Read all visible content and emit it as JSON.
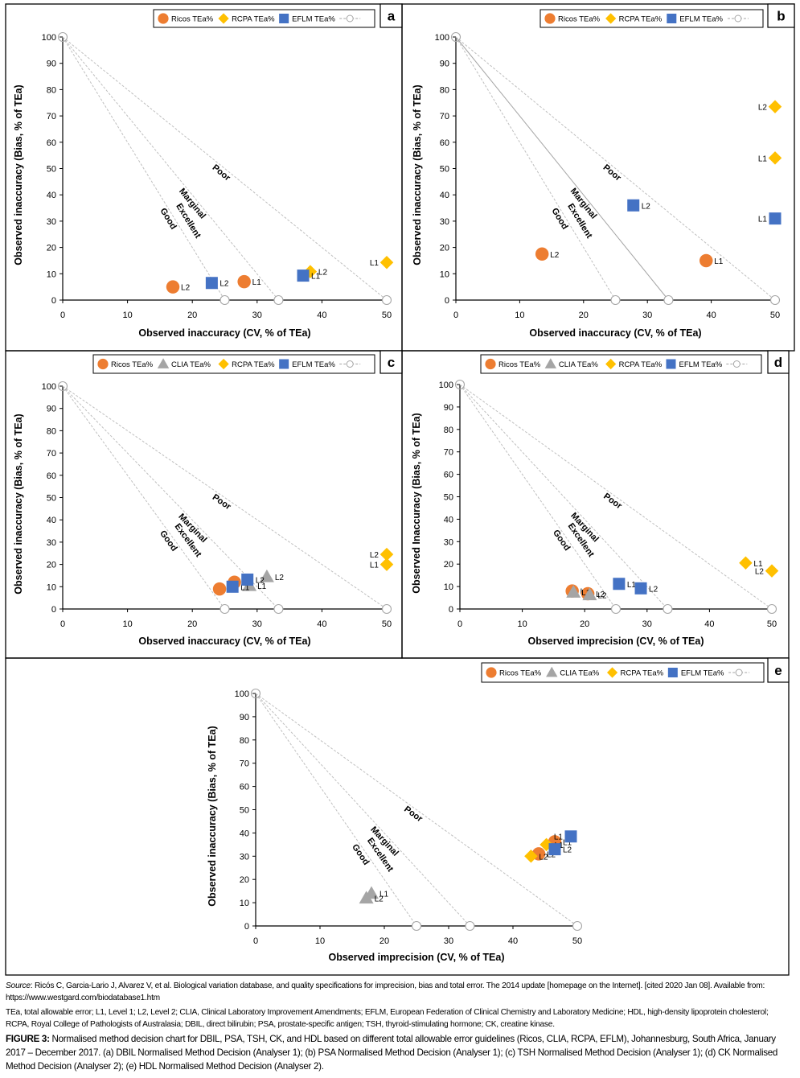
{
  "figure": {
    "panels": [
      {
        "id": "a",
        "label": "a",
        "legend": [
          {
            "name": "Ricos TEa%",
            "marker": "circle",
            "color": "#ED7D31"
          },
          {
            "name": "RCPA TEa%",
            "marker": "diamond",
            "color": "#FFC000"
          },
          {
            "name": "EFLM TEa%",
            "marker": "square",
            "color": "#4472C4"
          },
          {
            "name": "",
            "marker": "dashed-line-open-circle",
            "color": "#A6A6A6"
          }
        ],
        "xlabel": "Observed inaccuracy (CV, % of TEa)",
        "ylabel": "Observed inaccuracy (Bias, % of TEa)",
        "middle_line_solid": false
      },
      {
        "id": "b",
        "label": "b",
        "legend": [
          {
            "name": "Ricos TEa%",
            "marker": "circle",
            "color": "#ED7D31"
          },
          {
            "name": "RCPA TEa%",
            "marker": "diamond",
            "color": "#FFC000"
          },
          {
            "name": "EFLM TEa%",
            "marker": "square",
            "color": "#4472C4"
          },
          {
            "name": "",
            "marker": "dashed-line-open-circle",
            "color": "#A6A6A6"
          }
        ],
        "xlabel": "Observed inaccuracy (CV, % of TEa)",
        "ylabel": "Observed inaccuracy (Bias, % of TEa)",
        "middle_line_solid": true
      },
      {
        "id": "c",
        "label": "c",
        "legend": [
          {
            "name": "Ricos TEa%",
            "marker": "circle",
            "color": "#ED7D31"
          },
          {
            "name": "CLIA TEa%",
            "marker": "triangle",
            "color": "#A5A5A5"
          },
          {
            "name": "RCPA TEa%",
            "marker": "diamond",
            "color": "#FFC000"
          },
          {
            "name": "EFLM TEa%",
            "marker": "square",
            "color": "#4472C4"
          },
          {
            "name": "",
            "marker": "dashed-line-open-circle",
            "color": "#A6A6A6"
          }
        ],
        "xlabel": "Observed inaccuracy (CV, % of TEa)",
        "ylabel": "Observed inaccuracy (Bias, % of TEa)",
        "middle_line_solid": false
      },
      {
        "id": "d",
        "label": "d",
        "legend": [
          {
            "name": "Ricos TEa%",
            "marker": "circle",
            "color": "#ED7D31"
          },
          {
            "name": "CLIA TEa%",
            "marker": "triangle",
            "color": "#A5A5A5"
          },
          {
            "name": "RCPA TEa%",
            "marker": "diamond",
            "color": "#FFC000"
          },
          {
            "name": "EFLM TEa%",
            "marker": "square",
            "color": "#4472C4"
          },
          {
            "name": "",
            "marker": "dashed-line-open-circle",
            "color": "#A6A6A6"
          }
        ],
        "xlabel": "Observed imprecision (CV, % of TEa)",
        "ylabel": "Observed Inaccuracy (Bias, % of TEa)",
        "middle_line_solid": false
      },
      {
        "id": "e",
        "label": "e",
        "legend": [
          {
            "name": "Ricos TEa%",
            "marker": "circle",
            "color": "#ED7D31"
          },
          {
            "name": "CLIA TEa%",
            "marker": "triangle",
            "color": "#A5A5A5"
          },
          {
            "name": "RCPA TEa%",
            "marker": "diamond",
            "color": "#FFC000"
          },
          {
            "name": "EFLM TEa%",
            "marker": "square",
            "color": "#4472C4"
          },
          {
            "name": "",
            "marker": "dashed-line-open-circle",
            "color": "#A6A6A6"
          }
        ],
        "xlabel": "Observed imprecision (CV, % of TEa)",
        "ylabel": "Observed inaccuracy (Bias, % of TEa)",
        "middle_line_solid": false
      }
    ],
    "zone_labels": [
      "Excellent",
      "Good",
      "Marginal",
      "Poor"
    ]
  },
  "chart_data": [
    {
      "panel": "a",
      "type": "scatter",
      "title": "DBIL Normalised Method Decision (Analyser 1)",
      "xlabel": "Observed inaccuracy (CV, % of TEa)",
      "ylabel": "Observed inaccuracy (Bias, % of TEa)",
      "xlim": [
        0,
        50
      ],
      "ylim": [
        0,
        100
      ],
      "xticks": [
        0,
        10,
        20,
        30,
        40,
        50
      ],
      "yticks": [
        0,
        10,
        20,
        30,
        40,
        50,
        60,
        70,
        80,
        90,
        100
      ],
      "grid": false,
      "legend_position": "top-right",
      "decision_lines": [
        {
          "name": "Excellent/Good boundary",
          "from": [
            0,
            100
          ],
          "to": [
            25,
            0
          ]
        },
        {
          "name": "Good/Marginal boundary",
          "from": [
            0,
            100
          ],
          "to": [
            33.3,
            0
          ]
        },
        {
          "name": "Marginal/Poor boundary",
          "from": [
            0,
            100
          ],
          "to": [
            50,
            0
          ]
        }
      ],
      "series": [
        {
          "name": "Ricos TEa%",
          "points": [
            {
              "x": 28,
              "y": 7,
              "label": "L1"
            },
            {
              "x": 17,
              "y": 5,
              "label": "L2"
            }
          ]
        },
        {
          "name": "RCPA TEa%",
          "points": [
            {
              "x": 50,
              "y": 14.3,
              "label": "L1"
            },
            {
              "x": 38.2,
              "y": 10.8,
              "label": "L2"
            }
          ]
        },
        {
          "name": "EFLM TEa%",
          "points": [
            {
              "x": 37.1,
              "y": 9.3,
              "label": "L1"
            },
            {
              "x": 23,
              "y": 6.5,
              "label": "L2"
            }
          ]
        }
      ]
    },
    {
      "panel": "b",
      "type": "scatter",
      "title": "PSA Normalised Method Decision (Analyser 1)",
      "xlabel": "Observed inaccuracy (CV, % of TEa)",
      "ylabel": "Observed inaccuracy (Bias, % of TEa)",
      "xlim": [
        0,
        50
      ],
      "ylim": [
        0,
        100
      ],
      "xticks": [
        0,
        10,
        20,
        30,
        40,
        50
      ],
      "yticks": [
        0,
        10,
        20,
        30,
        40,
        50,
        60,
        70,
        80,
        90,
        100
      ],
      "grid": false,
      "legend_position": "top-right",
      "decision_lines": [
        {
          "name": "Excellent/Good boundary",
          "from": [
            0,
            100
          ],
          "to": [
            25,
            0
          ]
        },
        {
          "name": "Good/Marginal boundary",
          "from": [
            0,
            100
          ],
          "to": [
            33.3,
            0
          ]
        },
        {
          "name": "Marginal/Poor boundary",
          "from": [
            0,
            100
          ],
          "to": [
            50,
            0
          ]
        }
      ],
      "series": [
        {
          "name": "Ricos TEa%",
          "points": [
            {
              "x": 39.2,
              "y": 15,
              "label": "L1"
            },
            {
              "x": 13.5,
              "y": 17.5,
              "label": "L2"
            }
          ]
        },
        {
          "name": "RCPA TEa%",
          "points": [
            {
              "x": 50,
              "y": 54,
              "label": "L1"
            },
            {
              "x": 50,
              "y": 73.5,
              "label": "L2"
            }
          ]
        },
        {
          "name": "EFLM TEa%",
          "points": [
            {
              "x": 50,
              "y": 31,
              "label": "L1"
            },
            {
              "x": 27.8,
              "y": 36,
              "label": "L2"
            }
          ]
        }
      ]
    },
    {
      "panel": "c",
      "type": "scatter",
      "title": "TSH Normalised Method Decision (Analyser 1)",
      "xlabel": "Observed inaccuracy (CV, % of TEa)",
      "ylabel": "Observed inaccuracy (Bias, % of TEa)",
      "xlim": [
        0,
        50
      ],
      "ylim": [
        0,
        100
      ],
      "xticks": [
        0,
        10,
        20,
        30,
        40,
        50
      ],
      "yticks": [
        0,
        10,
        20,
        30,
        40,
        50,
        60,
        70,
        80,
        90,
        100
      ],
      "grid": false,
      "legend_position": "top-right",
      "decision_lines": [
        {
          "name": "Excellent/Good boundary",
          "from": [
            0,
            100
          ],
          "to": [
            25,
            0
          ]
        },
        {
          "name": "Good/Marginal boundary",
          "from": [
            0,
            100
          ],
          "to": [
            33.3,
            0
          ]
        },
        {
          "name": "Marginal/Poor boundary",
          "from": [
            0,
            100
          ],
          "to": [
            50,
            0
          ]
        }
      ],
      "series": [
        {
          "name": "Ricos TEa%",
          "points": [
            {
              "x": 24.2,
              "y": 9,
              "label": "L1"
            },
            {
              "x": 26.5,
              "y": 12,
              "label": "L2"
            }
          ]
        },
        {
          "name": "CLIA TEa%",
          "points": [
            {
              "x": 28.8,
              "y": 10.5,
              "label": "L1"
            },
            {
              "x": 31.5,
              "y": 14.5,
              "label": "L2"
            }
          ]
        },
        {
          "name": "RCPA TEa%",
          "points": [
            {
              "x": 50,
              "y": 20,
              "label": "L1"
            },
            {
              "x": 50,
              "y": 24.5,
              "label": "L2"
            }
          ]
        },
        {
          "name": "EFLM TEa%",
          "points": [
            {
              "x": 26.2,
              "y": 10,
              "label": "L1"
            },
            {
              "x": 28.5,
              "y": 13.2,
              "label": "L2"
            }
          ]
        }
      ]
    },
    {
      "panel": "d",
      "type": "scatter",
      "title": "CK Normalised Method Decision (Analyser 2)",
      "xlabel": "Observed imprecision (CV, % of TEa)",
      "ylabel": "Observed Inaccuracy (Bias, % of TEa)",
      "xlim": [
        0,
        50
      ],
      "ylim": [
        0,
        100
      ],
      "xticks": [
        0,
        10,
        20,
        30,
        40,
        50
      ],
      "yticks": [
        0,
        10,
        20,
        30,
        40,
        50,
        60,
        70,
        80,
        90,
        100
      ],
      "grid": false,
      "legend_position": "top-right",
      "decision_lines": [
        {
          "name": "Excellent/Good boundary",
          "from": [
            0,
            100
          ],
          "to": [
            25,
            0
          ]
        },
        {
          "name": "Good/Marginal boundary",
          "from": [
            0,
            100
          ],
          "to": [
            33.3,
            0
          ]
        },
        {
          "name": "Marginal/Poor boundary",
          "from": [
            0,
            100
          ],
          "to": [
            50,
            0
          ]
        }
      ],
      "series": [
        {
          "name": "Ricos TEa%",
          "points": [
            {
              "x": 18,
              "y": 8,
              "label": "L1"
            },
            {
              "x": 20.5,
              "y": 6.8,
              "label": "L2"
            }
          ]
        },
        {
          "name": "CLIA TEa%",
          "points": [
            {
              "x": 18.2,
              "y": 7.5,
              "label": "L1"
            },
            {
              "x": 20.8,
              "y": 6.3,
              "label": "L2"
            }
          ]
        },
        {
          "name": "RCPA TEa%",
          "points": [
            {
              "x": 45.8,
              "y": 20.5,
              "label": "L1"
            },
            {
              "x": 50,
              "y": 17,
              "label": "L2"
            }
          ]
        },
        {
          "name": "EFLM TEa%",
          "points": [
            {
              "x": 25.5,
              "y": 11.2,
              "label": "L1"
            },
            {
              "x": 29,
              "y": 9.2,
              "label": "L2"
            }
          ]
        }
      ]
    },
    {
      "panel": "e",
      "type": "scatter",
      "title": "HDL Normalised Method Decision (Analyser 2)",
      "xlabel": "Observed imprecision (CV, % of TEa)",
      "ylabel": "Observed inaccuracy (Bias, % of TEa)",
      "xlim": [
        0,
        50
      ],
      "ylim": [
        0,
        100
      ],
      "xticks": [
        0,
        10,
        20,
        30,
        40,
        50
      ],
      "yticks": [
        0,
        10,
        20,
        30,
        40,
        50,
        60,
        70,
        80,
        90,
        100
      ],
      "grid": false,
      "legend_position": "top-right",
      "decision_lines": [
        {
          "name": "Excellent/Good boundary",
          "from": [
            0,
            100
          ],
          "to": [
            25,
            0
          ]
        },
        {
          "name": "Good/Marginal boundary",
          "from": [
            0,
            100
          ],
          "to": [
            33.3,
            0
          ]
        },
        {
          "name": "Marginal/Poor boundary",
          "from": [
            0,
            100
          ],
          "to": [
            50,
            0
          ]
        }
      ],
      "series": [
        {
          "name": "Ricos TEa%",
          "points": [
            {
              "x": 46.5,
              "y": 36.2,
              "label": "L1"
            },
            {
              "x": 44,
              "y": 31,
              "label": "L2"
            }
          ]
        },
        {
          "name": "CLIA TEa%",
          "points": [
            {
              "x": 18,
              "y": 14,
              "label": "L1"
            },
            {
              "x": 17.2,
              "y": 12,
              "label": "L2"
            }
          ]
        },
        {
          "name": "RCPA TEa%",
          "points": [
            {
              "x": 45.2,
              "y": 35,
              "label": "L1"
            },
            {
              "x": 42.8,
              "y": 30,
              "label": "L2"
            }
          ]
        },
        {
          "name": "EFLM TEa%",
          "points": [
            {
              "x": 49,
              "y": 38.5,
              "label": "L1"
            },
            {
              "x": 46.5,
              "y": 33,
              "label": "L2"
            }
          ]
        }
      ]
    }
  ],
  "caption": {
    "source_label": "Source",
    "source_text": ": Ricós C, Garcia-Lario J, Alvarez V, et al. Biological variation database, and quality specifications for imprecision, bias and total error. The 2014 update [homepage on the Internet]. [cited 2020 Jan 08]. Available from: https://www.westgard.com/biodatabase1.htm",
    "abbreviations": "TEa, total allowable error; L1, Level 1; L2, Level 2; CLIA, Clinical Laboratory Improvement Amendments; EFLM, European Federation of Clinical Chemistry and Laboratory Medicine; HDL, high-density lipoprotein cholesterol; RCPA, Royal College of Pathologists of Australasia; DBIL, direct bilirubin; PSA, prostate-specific antigen; TSH, thyroid-stimulating hormone; CK, creatine kinase.",
    "figure_label": "FIGURE 3:",
    "figure_text": " Normalised method decision chart for DBIL, PSA, TSH, CK, and HDL based on different total allowable error guidelines (Ricos, CLIA, RCPA, EFLM), Johannesburg, South Africa, January 2017 – December 2017. (a) DBIL Normalised Method Decision (Analyser 1); (b) PSA Normalised Method Decision (Analyser 1); (c) TSH Normalised Method Decision (Analyser 1); (d) CK Normalised Method Decision (Analyser 2); (e) HDL Normalised Method Decision (Analyser 2)."
  }
}
